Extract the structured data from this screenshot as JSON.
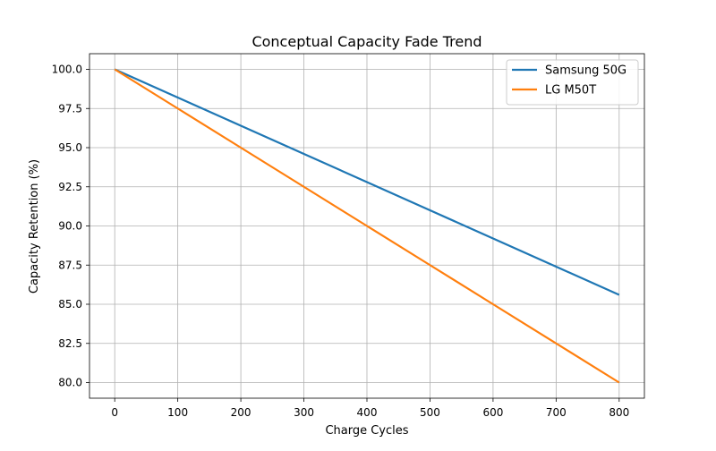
{
  "chart_data": {
    "type": "line",
    "title": "Conceptual Capacity Fade Trend",
    "xlabel": "Charge Cycles",
    "ylabel": "Capacity Retention (%)",
    "xlim": [
      -40,
      840
    ],
    "ylim": [
      79.0,
      101.0
    ],
    "xticks": [
      0,
      100,
      200,
      300,
      400,
      500,
      600,
      700,
      800
    ],
    "xtick_labels": [
      "0",
      "100",
      "200",
      "300",
      "400",
      "500",
      "600",
      "700",
      "800"
    ],
    "yticks": [
      80.0,
      82.5,
      85.0,
      87.5,
      90.0,
      92.5,
      95.0,
      97.5,
      100.0
    ],
    "ytick_labels": [
      "80.0",
      "82.5",
      "85.0",
      "87.5",
      "90.0",
      "92.5",
      "95.0",
      "97.5",
      "100.0"
    ],
    "grid": true,
    "legend_position": "top-right",
    "series": [
      {
        "name": "Samsung 50G",
        "color": "#1f77b4",
        "x": [
          0,
          100,
          200,
          300,
          400,
          500,
          600,
          700,
          800
        ],
        "y": [
          100.0,
          98.2,
          96.4,
          94.6,
          92.8,
          91.0,
          89.2,
          87.4,
          85.6
        ]
      },
      {
        "name": "LG M50T",
        "color": "#ff7f0e",
        "x": [
          0,
          100,
          200,
          300,
          400,
          500,
          600,
          700,
          800
        ],
        "y": [
          100.0,
          97.5,
          95.0,
          92.5,
          90.0,
          87.5,
          85.0,
          82.5,
          80.0
        ]
      }
    ]
  }
}
